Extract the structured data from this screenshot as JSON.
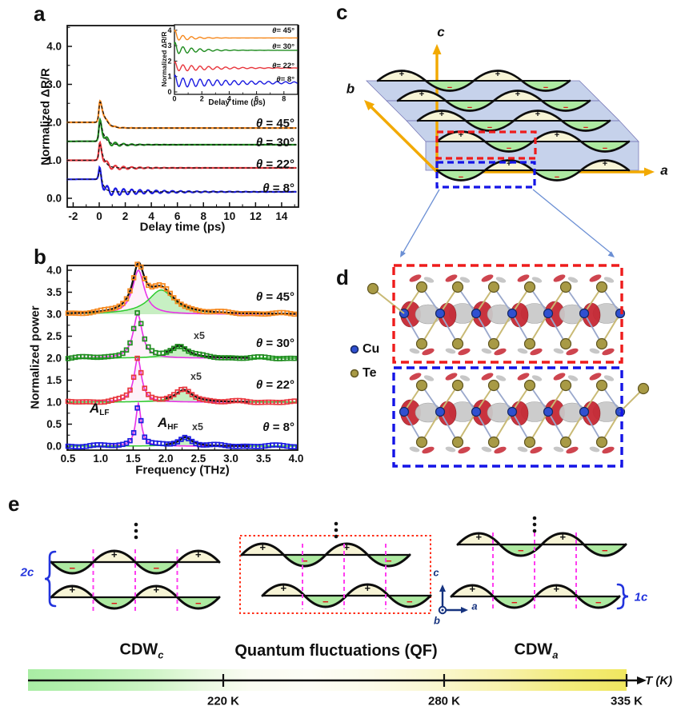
{
  "panel_letters": {
    "a": "a",
    "b": "b",
    "c": "c",
    "d": "d",
    "e": "e"
  },
  "colors": {
    "orange": "#f6891f",
    "green": "#1f8c1f",
    "red": "#e8373e",
    "blue": "#1a1ae0",
    "lf_magenta": "#e832e8",
    "hf_green": "#2ecc2e",
    "hf_fill": "#b9ecb4",
    "lf_fill": "#fbe9f7",
    "wave_cream": "#f7f4d6",
    "wave_green": "#ade9a1",
    "minus_red": "#e01515",
    "plane_blue": "#8da5d8",
    "plane_edge": "#7a7ab8",
    "axis_gold": "#f2a900",
    "box_red": "#ee1c1c",
    "box_blue": "#1414e6",
    "magenta_dash": "#ff3df0",
    "cu_blue": "#3050d0",
    "te_khaki": "#a89a45",
    "blob_red": "#c52430",
    "blob_gray": "#c9c9c9",
    "bracket_blue": "#2233dd",
    "e_axis_blue": "#16337f",
    "connector_blue": "#6b8fd4"
  },
  "chart_data": [
    {
      "id": "panel_a",
      "type": "line",
      "xlabel": "Delay time (ps)",
      "ylabel": "Normalized ΔR/R",
      "xlim": [
        -2.5,
        15.2
      ],
      "ylim": [
        -0.23,
        4.55
      ],
      "xtick_values": [
        -2,
        0,
        2,
        4,
        6,
        8,
        10,
        12,
        14
      ],
      "xtick_labels": [
        "-2",
        "0",
        "2",
        "4",
        "6",
        "8",
        "10",
        "12",
        "14"
      ],
      "ytick_values": [
        0,
        1,
        2,
        3,
        4
      ],
      "ytick_labels": [
        "0.0",
        "1.0",
        "2.0",
        "3.0",
        "4.0"
      ],
      "series": [
        {
          "label": "θ = 45°",
          "color_key": "orange",
          "baseline": 2.0,
          "peak": 2.85,
          "settle": 1.85,
          "fast_decay_ps": 0.35,
          "osc_amp": 0.05,
          "osc_decay_ps": 0.9,
          "osc_freq_thz": 1.6
        },
        {
          "label": "θ = 30°",
          "color_key": "green",
          "baseline": 1.5,
          "peak": 2.3,
          "settle": 1.41,
          "fast_decay_ps": 0.3,
          "osc_amp": 0.13,
          "osc_decay_ps": 1.2,
          "osc_freq_thz": 1.6
        },
        {
          "label": "θ = 22°",
          "color_key": "red",
          "baseline": 1.0,
          "peak": 1.7,
          "settle": 0.8,
          "fast_decay_ps": 0.28,
          "osc_amp": 0.1,
          "osc_decay_ps": 1.8,
          "osc_freq_thz": 1.6
        },
        {
          "label": "θ = 8°",
          "color_key": "blue",
          "baseline": 0.5,
          "peak": 0.97,
          "settle": 0.17,
          "fast_decay_ps": 0.22,
          "osc_amp": 0.13,
          "osc_decay_ps": 3.5,
          "osc_freq_thz": 1.6
        }
      ]
    },
    {
      "id": "panel_a_inset",
      "type": "line",
      "xlabel": "Delay time (ps)",
      "ylabel": "Normalized ΔR/R",
      "xlim": [
        0,
        9
      ],
      "ylim": [
        -0.1,
        4.35
      ],
      "xtick_values": [
        0,
        2,
        4,
        6,
        8
      ],
      "xtick_labels": [
        "0",
        "2",
        "4",
        "6",
        "8"
      ],
      "ytick_values": [
        0,
        1,
        2,
        3,
        4
      ],
      "ytick_labels": [
        "0",
        "1",
        "2",
        "3",
        "4"
      ],
      "series": [
        {
          "label": "θ= 45°",
          "color_key": "orange",
          "baseline": 3.5,
          "peak": 4.05,
          "settle": 3.5,
          "fast_decay_ps": 0.15,
          "osc_amp": 0.27,
          "osc_decay_ps": 1.1,
          "osc_freq_thz": 1.6
        },
        {
          "label": "θ= 30°",
          "color_key": "green",
          "baseline": 2.7,
          "peak": 3.2,
          "settle": 2.7,
          "fast_decay_ps": 0.15,
          "osc_amp": 0.33,
          "osc_decay_ps": 1.5,
          "osc_freq_thz": 1.6
        },
        {
          "label": "θ= 22°",
          "color_key": "red",
          "baseline": 1.55,
          "peak": 1.95,
          "settle": 1.55,
          "fast_decay_ps": 0.15,
          "osc_amp": 0.25,
          "osc_decay_ps": 2.8,
          "osc_freq_thz": 1.6
        },
        {
          "label": "θ= 8°",
          "color_key": "blue",
          "baseline": 0.6,
          "peak": 1.05,
          "settle": 0.6,
          "fast_decay_ps": 0.15,
          "osc_amp": 0.33,
          "osc_decay_ps": 5.0,
          "osc_freq_thz": 1.6
        }
      ]
    },
    {
      "id": "panel_b",
      "type": "scatter",
      "xlabel": "Frequency (THz)",
      "ylabel": "Normalized power",
      "xlim": [
        0.45,
        4.05
      ],
      "ylim": [
        -0.07,
        4.1
      ],
      "xtick_values": [
        0.5,
        1.0,
        1.5,
        2.0,
        2.5,
        3.0,
        3.5,
        4.0
      ],
      "xtick_labels": [
        "0.5",
        "1.0",
        "1.5",
        "2.0",
        "2.5",
        "3.0",
        "3.5",
        "4.0"
      ],
      "ytick_values": [
        0,
        0.5,
        1,
        1.5,
        2,
        2.5,
        3,
        3.5,
        4
      ],
      "ytick_labels": [
        "0.0",
        "0.5",
        "1.0",
        "1.5",
        "2.0",
        "2.5",
        "3.0",
        "3.5",
        "4.0"
      ],
      "annotations": {
        "lf_main": "A",
        "lf_sub": "LF",
        "hf_main": "A",
        "hf_sub": "HF",
        "x5": "x5"
      },
      "series": [
        {
          "label": "θ = 45°",
          "color_key": "orange",
          "baseline": 3.0,
          "lf_peak": {
            "freq_thz": 1.58,
            "height": 1.0,
            "hwhm": 0.11
          },
          "hf_peak": {
            "freq_thz": 1.93,
            "height": 0.55,
            "hwhm": 0.24
          },
          "hf_scaled_x5": false
        },
        {
          "label": "θ = 30°",
          "color_key": "green",
          "baseline": 2.0,
          "lf_peak": {
            "freq_thz": 1.57,
            "height": 1.0,
            "hwhm": 0.085
          },
          "hf_peak": {
            "freq_thz": 2.21,
            "height": 0.27,
            "hwhm": 0.16
          },
          "hf_scaled_x5": true
        },
        {
          "label": "θ = 22°",
          "color_key": "red",
          "baseline": 1.0,
          "lf_peak": {
            "freq_thz": 1.57,
            "height": 1.0,
            "hwhm": 0.07
          },
          "hf_peak": {
            "freq_thz": 2.28,
            "height": 0.27,
            "hwhm": 0.16
          },
          "hf_scaled_x5": true
        },
        {
          "label": "θ = 8°",
          "color_key": "blue",
          "baseline": 0.0,
          "lf_peak": {
            "freq_thz": 1.58,
            "height": 0.97,
            "hwhm": 0.05
          },
          "hf_peak": {
            "freq_thz": 2.3,
            "height": 0.2,
            "hwhm": 0.12
          },
          "hf_scaled_x5": true
        }
      ]
    },
    {
      "id": "panel_e_temperature_axis",
      "type": "axis",
      "label": "T (K)",
      "tick_values_k": [
        220,
        280,
        335
      ],
      "tick_labels": [
        "220 K",
        "280 K",
        "335 K"
      ]
    }
  ],
  "panel_c": {
    "axis_a": "a",
    "axis_b": "b",
    "axis_c": "c",
    "plus": "+",
    "minus": "−",
    "n_layers": 5
  },
  "panel_d": {
    "legend": [
      {
        "id": "cu",
        "label": "Cu"
      },
      {
        "id": "te",
        "label": "Te"
      }
    ]
  },
  "panel_e": {
    "bracket_left": "2c",
    "bracket_right": "1c",
    "axis_a": "a",
    "axis_b": "b",
    "axis_c": "c",
    "plus": "+",
    "minus": "−",
    "regions": [
      {
        "main": "CDW",
        "sub": "c"
      },
      {
        "main": "Quantum fluctuations (QF)",
        "sub": ""
      },
      {
        "main": "CDW",
        "sub": "a"
      }
    ],
    "t_ticks": [
      "220 K",
      "280 K",
      "335 K"
    ],
    "t_label": "T (K)"
  }
}
